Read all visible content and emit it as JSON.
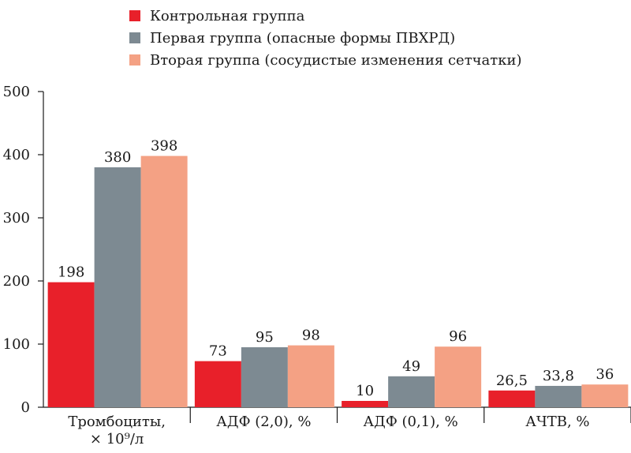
{
  "chart_data": {
    "type": "bar",
    "categories": [
      "Тромбоциты,|× 10⁹/л",
      "АДФ (2,0), %",
      "АДФ (0,1), %",
      "АЧТВ, %"
    ],
    "series": [
      {
        "name": "Контрольная группа",
        "color": "#e8202a",
        "values": [
          198,
          73,
          10,
          26.5
        ],
        "labels": [
          "198",
          "73",
          "10",
          "26,5"
        ]
      },
      {
        "name": "Первая группа (опасные формы ПВХРД)",
        "color": "#7d8a92",
        "values": [
          380,
          95,
          49,
          33.8
        ],
        "labels": [
          "380",
          "95",
          "49",
          "33,8"
        ]
      },
      {
        "name": "Вторая группа (сосудистые изменения сетчатки)",
        "color": "#f4a184",
        "values": [
          398,
          98,
          96,
          36
        ],
        "labels": [
          "398",
          "98",
          "96",
          "36"
        ]
      }
    ],
    "yticks": [
      0,
      100,
      200,
      300,
      400,
      500
    ],
    "ylim": [
      0,
      500
    ],
    "grid": false,
    "legend_position": "top"
  }
}
